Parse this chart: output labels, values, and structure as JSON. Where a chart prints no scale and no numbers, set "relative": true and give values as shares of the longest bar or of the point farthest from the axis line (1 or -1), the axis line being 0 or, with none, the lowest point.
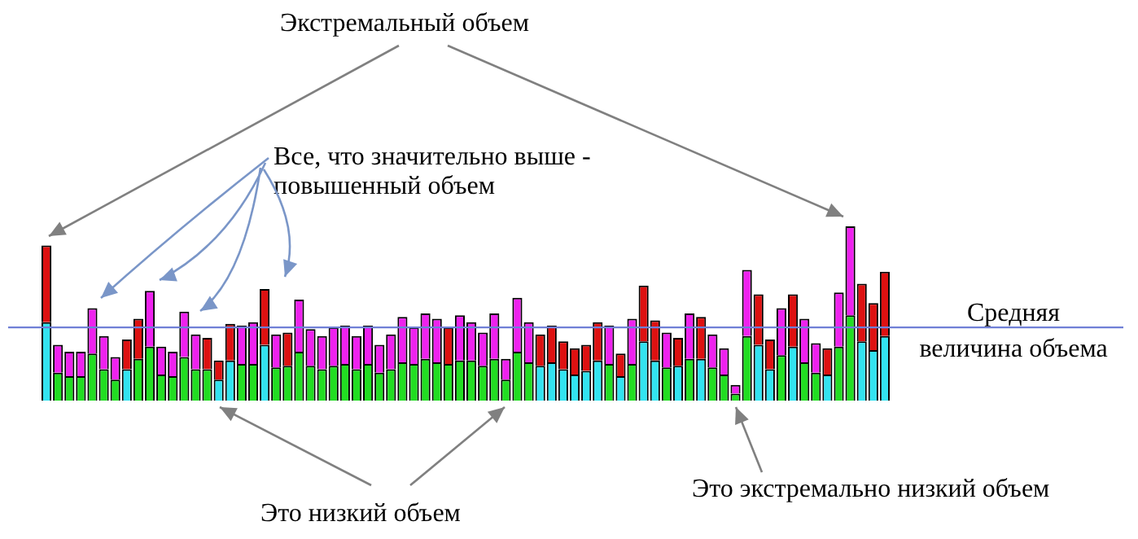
{
  "chart_data": {
    "type": "bar",
    "stacked": true,
    "relative": true,
    "legend": false,
    "categories": [
      null,
      null,
      null,
      null,
      null,
      null,
      null,
      null,
      null,
      null,
      null,
      null,
      null,
      null,
      null,
      null,
      null,
      null,
      null,
      null,
      null,
      null,
      null,
      null,
      null,
      null,
      null,
      null,
      null,
      null,
      null,
      null,
      null,
      null,
      null,
      null,
      null,
      null,
      null,
      null,
      null,
      null,
      null,
      null,
      null,
      null,
      null,
      null,
      null,
      null,
      null,
      null,
      null,
      null,
      null,
      null,
      null,
      null,
      null,
      null,
      null,
      null,
      null,
      null,
      null,
      null,
      null,
      null,
      null,
      null,
      null,
      null,
      null,
      null
    ],
    "series": [
      {
        "values": [
          0.45,
          0.16,
          0.14,
          0.14,
          0.27,
          0.18,
          0.12,
          0.18,
          0.24,
          0.31,
          0.15,
          0.14,
          0.25,
          0.18,
          0.18,
          0.12,
          0.23,
          0.21,
          0.21,
          0.32,
          0.19,
          0.2,
          0.28,
          0.2,
          0.18,
          0.2,
          0.21,
          0.18,
          0.21,
          0.16,
          0.18,
          0.22,
          0.21,
          0.24,
          0.22,
          0.21,
          0.23,
          0.23,
          0.2,
          0.24,
          0.12,
          0.28,
          0.22,
          0.2,
          0.22,
          0.18,
          0.15,
          0.17,
          0.23,
          0.21,
          0.14,
          0.21,
          0.34,
          0.23,
          0.19,
          0.2,
          0.24,
          0.24,
          0.19,
          0.15,
          0.04,
          0.37,
          0.32,
          0.18,
          0.26,
          0.31,
          0.22,
          0.16,
          0.15,
          0.31,
          0.49,
          0.34,
          0.29,
          0.37
        ],
        "colors": [
          "#33e3f0",
          "#22dd22",
          "#22dd22",
          "#22dd22",
          "#22dd22",
          "#22dd22",
          "#22dd22",
          "#33e3f0",
          "#22dd22",
          "#22dd22",
          "#22dd22",
          "#22dd22",
          "#22dd22",
          "#22dd22",
          "#22dd22",
          "#33e3f0",
          "#33e3f0",
          "#22dd22",
          "#22dd22",
          "#33e3f0",
          "#22dd22",
          "#22dd22",
          "#22dd22",
          "#22dd22",
          "#22dd22",
          "#22dd22",
          "#22dd22",
          "#22dd22",
          "#22dd22",
          "#22dd22",
          "#22dd22",
          "#22dd22",
          "#22dd22",
          "#22dd22",
          "#22dd22",
          "#22dd22",
          "#22dd22",
          "#22dd22",
          "#22dd22",
          "#22dd22",
          "#22dd22",
          "#22dd22",
          "#22dd22",
          "#33e3f0",
          "#33e3f0",
          "#33e3f0",
          "#33e3f0",
          "#33e3f0",
          "#33e3f0",
          "#22dd22",
          "#33e3f0",
          "#22dd22",
          "#33e3f0",
          "#33e3f0",
          "#22dd22",
          "#33e3f0",
          "#22dd22",
          "#33e3f0",
          "#22dd22",
          "#22dd22",
          "#22dd22",
          "#22dd22",
          "#33e3f0",
          "#33e3f0",
          "#22dd22",
          "#33e3f0",
          "#22dd22",
          "#22dd22",
          "#33e3f0",
          "#22dd22",
          "#22dd22",
          "#33e3f0",
          "#33e3f0",
          "#33e3f0"
        ]
      },
      {
        "values": [
          0.44,
          0.16,
          0.14,
          0.14,
          0.26,
          0.19,
          0.13,
          0.17,
          0.23,
          0.32,
          0.16,
          0.14,
          0.26,
          0.2,
          0.18,
          0.11,
          0.21,
          0.22,
          0.24,
          0.32,
          0.19,
          0.19,
          0.3,
          0.21,
          0.19,
          0.22,
          0.22,
          0.19,
          0.22,
          0.16,
          0.2,
          0.26,
          0.21,
          0.26,
          0.25,
          0.21,
          0.26,
          0.22,
          0.19,
          0.26,
          0.12,
          0.31,
          0.23,
          0.18,
          0.21,
          0.16,
          0.15,
          0.15,
          0.22,
          0.22,
          0.13,
          0.26,
          0.32,
          0.23,
          0.2,
          0.16,
          0.26,
          0.24,
          0.19,
          0.15,
          0.05,
          0.38,
          0.29,
          0.17,
          0.27,
          0.3,
          0.25,
          0.17,
          0.15,
          0.31,
          0.51,
          0.33,
          0.27,
          0.37
        ],
        "colors": [
          "#dd1111",
          "#ee22ee",
          "#ee22ee",
          "#ee22ee",
          "#ee22ee",
          "#ee22ee",
          "#ee22ee",
          "#dd1111",
          "#dd1111",
          "#ee22ee",
          "#ee22ee",
          "#ee22ee",
          "#ee22ee",
          "#ee22ee",
          "#dd1111",
          "#dd1111",
          "#dd1111",
          "#ee22ee",
          "#ee22ee",
          "#dd1111",
          "#ee22ee",
          "#dd1111",
          "#ee22ee",
          "#ee22ee",
          "#ee22ee",
          "#ee22ee",
          "#ee22ee",
          "#ee22ee",
          "#ee22ee",
          "#ee22ee",
          "#ee22ee",
          "#ee22ee",
          "#ee22ee",
          "#ee22ee",
          "#ee22ee",
          "#dd1111",
          "#ee22ee",
          "#ee22ee",
          "#ee22ee",
          "#ee22ee",
          "#ee22ee",
          "#ee22ee",
          "#ee22ee",
          "#dd1111",
          "#dd1111",
          "#dd1111",
          "#dd1111",
          "#dd1111",
          "#dd1111",
          "#ee22ee",
          "#dd1111",
          "#ee22ee",
          "#dd1111",
          "#dd1111",
          "#ee22ee",
          "#dd1111",
          "#ee22ee",
          "#dd1111",
          "#ee22ee",
          "#ee22ee",
          "#ee22ee",
          "#ee22ee",
          "#dd1111",
          "#dd1111",
          "#ee22ee",
          "#dd1111",
          "#ee22ee",
          "#ee22ee",
          "#dd1111",
          "#ee22ee",
          "#ee22ee",
          "#dd1111",
          "#dd1111",
          "#dd1111"
        ]
      }
    ],
    "ref_lines": [
      {
        "axis": "y",
        "value": 0.42,
        "label": "Средняя величина объема",
        "color": "#6f7fd6"
      }
    ],
    "annotations": [
      "Экстремальный объем",
      "Все, что значительно выше - повышенный объем",
      "Это низкий объем",
      "Это экстремально низкий объем"
    ]
  }
}
